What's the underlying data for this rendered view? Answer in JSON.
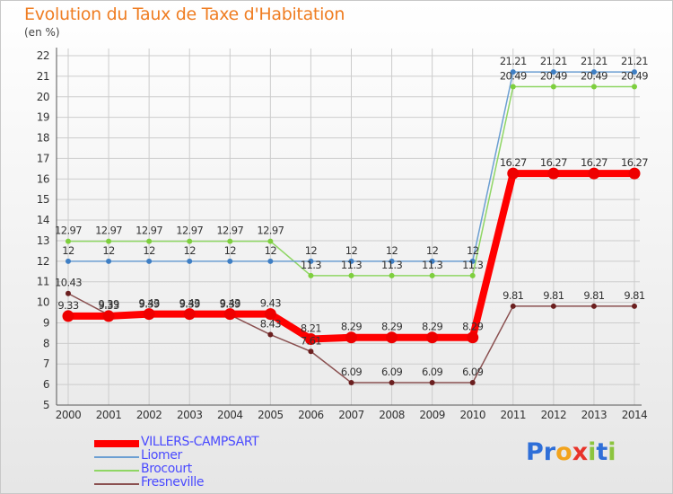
{
  "title": "Evolution du Taux de Taxe d'Habitation",
  "subtitle": "(en %)",
  "logo": {
    "letters": [
      [
        "P",
        "#2f6fd8"
      ],
      [
        "r",
        "#2f6fd8"
      ],
      [
        "o",
        "#f2a31c"
      ],
      [
        "x",
        "#e8332a"
      ],
      [
        "i",
        "#8cc43f"
      ],
      [
        "t",
        "#2f6fd8"
      ],
      [
        "i",
        "#8cc43f"
      ]
    ]
  },
  "chart_data": {
    "type": "line",
    "title": "Evolution du Taux de Taxe d'Habitation",
    "ylabel": "(en %)",
    "xlabel": "",
    "ylim": [
      5,
      22
    ],
    "yticks": [
      5,
      6,
      7,
      8,
      9,
      10,
      11,
      12,
      13,
      14,
      15,
      16,
      17,
      18,
      19,
      20,
      21,
      22
    ],
    "grid": true,
    "legend_position": "bottom-left",
    "x": [
      "2000",
      "2001",
      "2002",
      "2003",
      "2004",
      "2005",
      "2006",
      "2007",
      "2008",
      "2009",
      "2010",
      "2011",
      "2012",
      "2013",
      "2014"
    ],
    "series": [
      {
        "name": "VILLERS-CAMPSART",
        "color": "#ff0000",
        "marker_color": "#ee0000",
        "values": [
          9.33,
          9.33,
          9.43,
          9.43,
          9.43,
          9.43,
          8.21,
          8.29,
          8.29,
          8.29,
          8.29,
          16.27,
          16.27,
          16.27,
          16.27
        ],
        "labels": [
          "9.33",
          "9.33",
          "9.43",
          "9.43",
          "9.43",
          "9.43",
          "8.21",
          "8.29",
          "8.29",
          "8.29",
          "8.29",
          "16.27",
          "16.27",
          "16.27",
          "16.27"
        ]
      },
      {
        "name": "Liomer",
        "color": "#6c9fd2",
        "marker_color": "#3f7fc4",
        "values": [
          12,
          12,
          12,
          12,
          12,
          12,
          12,
          12,
          12,
          12,
          12,
          21.21,
          21.21,
          21.21,
          21.21
        ],
        "labels": [
          "12",
          "12",
          "12",
          "12",
          "12",
          "12",
          "12",
          "12",
          "12",
          "12",
          "12",
          "21.21",
          "21.21",
          "21.21",
          "21.21"
        ]
      },
      {
        "name": "Brocourt",
        "color": "#8fd664",
        "marker_color": "#7ecf3e",
        "values": [
          12.97,
          12.97,
          12.97,
          12.97,
          12.97,
          12.97,
          11.3,
          11.3,
          11.3,
          11.3,
          11.3,
          20.49,
          20.49,
          20.49,
          20.49
        ],
        "labels": [
          "12.97",
          "12.97",
          "12.97",
          "12.97",
          "12.97",
          "12.97",
          "11.3",
          "11.3",
          "11.3",
          "11.3",
          "11.3",
          "20.49",
          "20.49",
          "20.49",
          "20.49"
        ]
      },
      {
        "name": "Fresneville",
        "color": "#8a5050",
        "marker_color": "#6b1f1f",
        "values": [
          10.43,
          9.39,
          9.39,
          9.39,
          9.39,
          8.43,
          7.61,
          6.09,
          6.09,
          6.09,
          6.09,
          9.81,
          9.81,
          9.81,
          9.81
        ],
        "labels": [
          "10.43",
          "9.39",
          "9.39",
          "9.39",
          "9.39",
          "8.43",
          "7.61",
          "6.09",
          "6.09",
          "6.09",
          "6.09",
          "9.81",
          "9.81",
          "9.81",
          "9.81"
        ]
      }
    ]
  }
}
